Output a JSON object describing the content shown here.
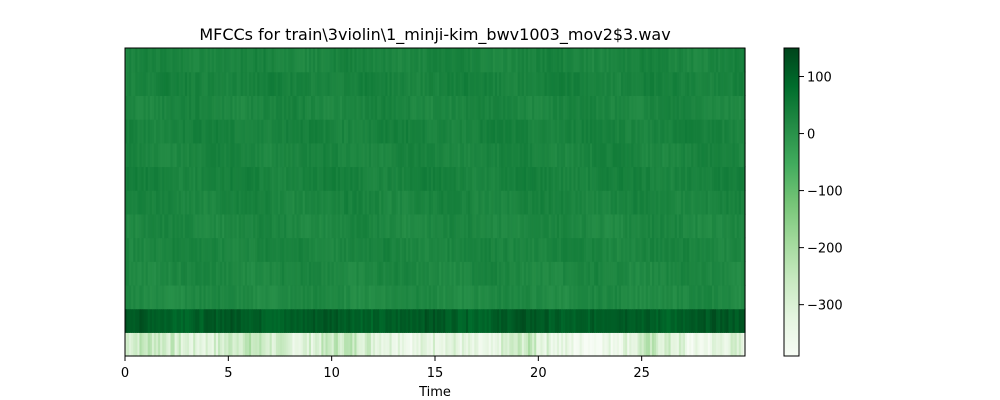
{
  "chart_data": {
    "type": "heatmap",
    "title": "MFCCs for train\\3violin\\1_minji-kim_bwv1003_mov2$3.wav",
    "xlabel": "Time",
    "ylabel": "",
    "xlim": [
      0,
      30
    ],
    "x_ticks": [
      0,
      5,
      10,
      15,
      20,
      25
    ],
    "x_tick_labels": [
      "0",
      "5",
      "10",
      "15",
      "20",
      "25"
    ],
    "y_ticks": [],
    "colormap": "Greens",
    "colorbar": {
      "range": [
        -390,
        150
      ],
      "ticks": [
        100,
        0,
        -100,
        -200,
        -300
      ],
      "tick_labels": [
        "100",
        "0",
        "−100",
        "−200",
        "−300"
      ],
      "colors": [
        "#f7fcf5",
        "#e5f5e0",
        "#c7e9c0",
        "#a1d99b",
        "#74c476",
        "#41ab5d",
        "#238b45",
        "#006d2c",
        "#00441b"
      ]
    },
    "coefficients": 13,
    "coefficient_mean_values": [
      -280,
      110,
      20,
      25,
      30,
      25,
      30,
      35,
      30,
      35,
      28,
      35,
      30
    ],
    "frames": 300
  }
}
